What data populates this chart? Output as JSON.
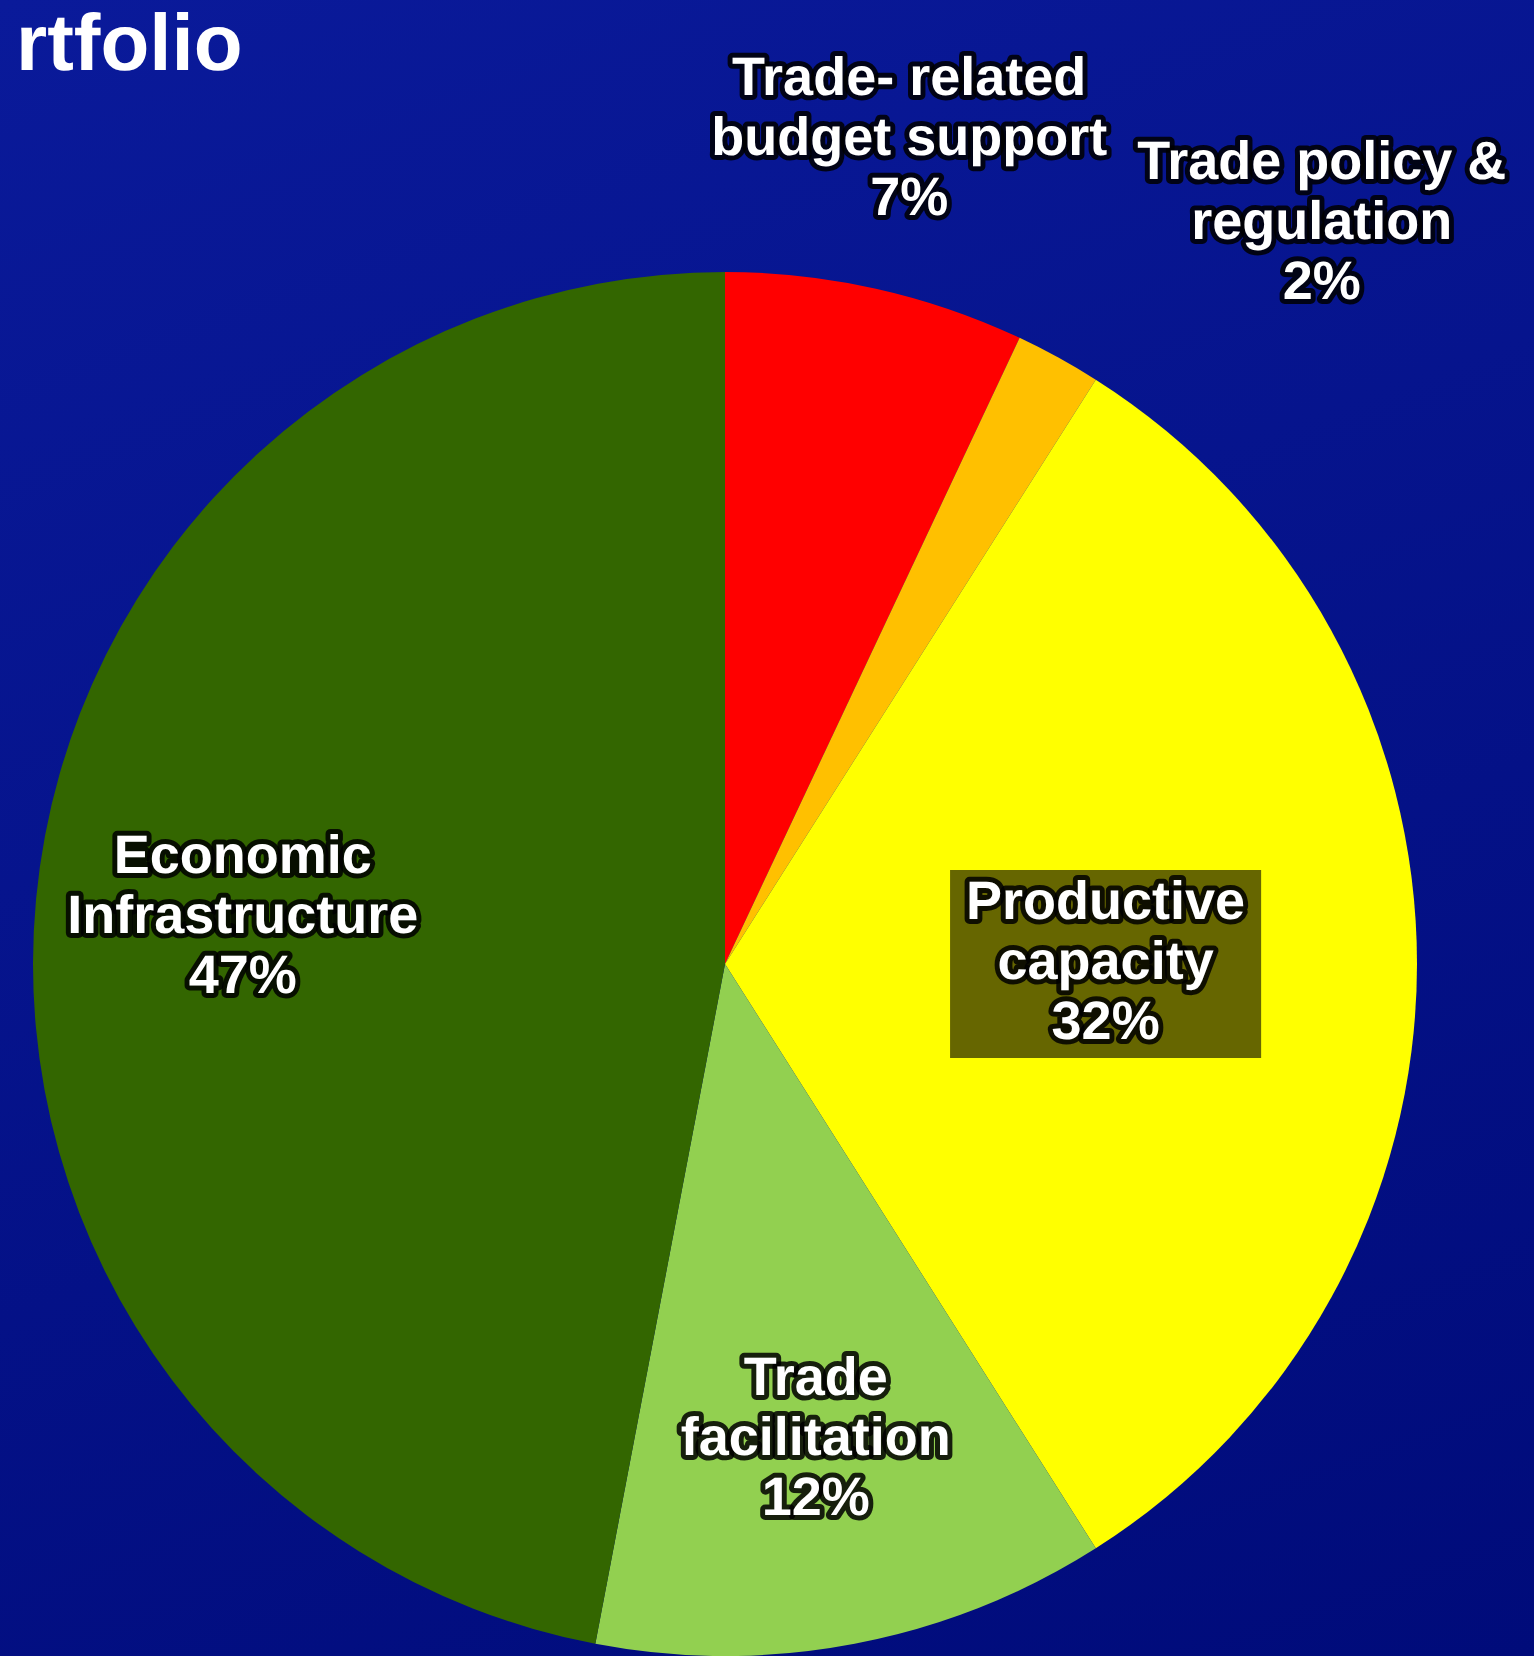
{
  "chart_data": {
    "type": "pie",
    "title": "rtfolio",
    "categories": [
      "Trade- related budget support",
      "Trade policy & regulation",
      "Productive capacity",
      "Trade facilitation",
      "Economic Infrastructure"
    ],
    "values": [
      7,
      2,
      32,
      12,
      47
    ],
    "colors": [
      "#ff0000",
      "#ffc000",
      "#ffff00",
      "#92d050",
      "#336600"
    ],
    "value_labels": [
      "7%",
      "2%",
      "32%",
      "12%",
      "47%"
    ],
    "legend": false
  }
}
